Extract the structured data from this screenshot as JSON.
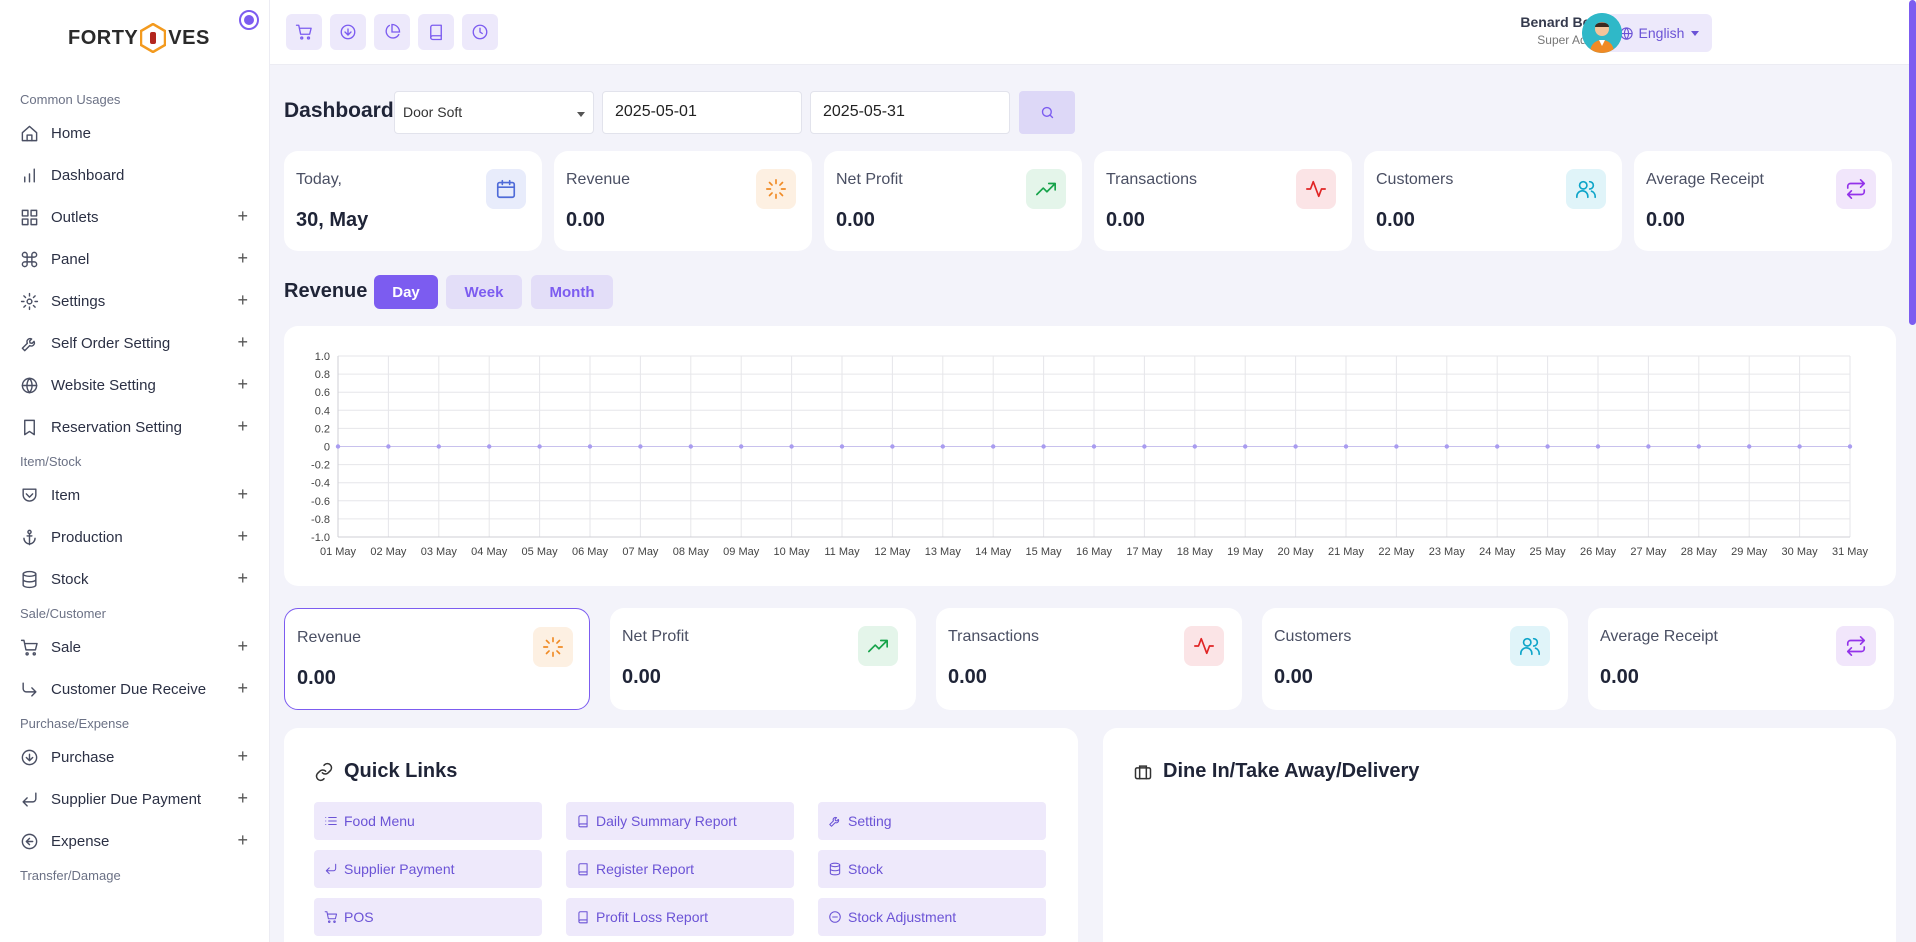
{
  "logo": {
    "left": "FORTY",
    "right": "VES"
  },
  "sidebar": {
    "sections": [
      {
        "title": "Common Usages",
        "items": [
          {
            "label": "Home",
            "icon": "home-icon",
            "plus": ""
          },
          {
            "label": "Dashboard",
            "icon": "bar-chart-icon",
            "plus": ""
          },
          {
            "label": "Outlets",
            "icon": "grid-icon",
            "plus": "+"
          },
          {
            "label": "Panel",
            "icon": "command-icon",
            "plus": "+"
          },
          {
            "label": "Settings",
            "icon": "gear-icon",
            "plus": "+"
          },
          {
            "label": "Self Order Setting",
            "icon": "wrench-icon",
            "plus": "+"
          },
          {
            "label": "Website Setting",
            "icon": "globe-icon",
            "plus": "+"
          },
          {
            "label": "Reservation Setting",
            "icon": "bookmark-icon",
            "plus": "+"
          }
        ]
      },
      {
        "title": "Item/Stock",
        "items": [
          {
            "label": "Item",
            "icon": "pocket-icon",
            "plus": "+"
          },
          {
            "label": "Production",
            "icon": "anchor-icon",
            "plus": "+"
          },
          {
            "label": "Stock",
            "icon": "database-icon",
            "plus": "+"
          }
        ]
      },
      {
        "title": "Sale/Customer",
        "items": [
          {
            "label": "Sale",
            "icon": "cart-icon",
            "plus": "+"
          },
          {
            "label": "Customer Due Receive",
            "icon": "corner-down-right-icon",
            "plus": "+"
          }
        ]
      },
      {
        "title": "Purchase/Expense",
        "items": [
          {
            "label": "Purchase",
            "icon": "arrow-down-circle-icon",
            "plus": "+"
          },
          {
            "label": "Supplier Due Payment",
            "icon": "corner-down-left-icon",
            "plus": "+"
          },
          {
            "label": "Expense",
            "icon": "arrow-left-circle-icon",
            "plus": "+"
          }
        ]
      },
      {
        "title": "Transfer/Damage",
        "items": []
      }
    ]
  },
  "topbar": {
    "language": "English",
    "user_name": "Benard Bees",
    "user_role": "Super Admin"
  },
  "filters": {
    "title": "Dashboard",
    "outlet": "Door Soft",
    "start_date": "2025-05-01",
    "end_date": "2025-05-31"
  },
  "top_cards": [
    {
      "label": "Today,",
      "value": "30, May",
      "icon": "calendar-icon",
      "color": "#4f6bd8",
      "bg": "#e8ecfb"
    },
    {
      "label": "Revenue",
      "value": "0.00",
      "icon": "loader-icon",
      "color": "#f08a24",
      "bg": "#fdf0e2"
    },
    {
      "label": "Net Profit",
      "value": "0.00",
      "icon": "trending-up-icon",
      "color": "#16a34a",
      "bg": "#e4f5ea"
    },
    {
      "label": "Transactions",
      "value": "0.00",
      "icon": "activity-icon",
      "color": "#e02424",
      "bg": "#fbe4e6"
    },
    {
      "label": "Customers",
      "value": "0.00",
      "icon": "users-icon",
      "color": "#0ea5c9",
      "bg": "#e0f4f9"
    },
    {
      "label": "Average Receipt",
      "value": "0.00",
      "icon": "repeat-icon",
      "color": "#9333ea",
      "bg": "#f1e6fb"
    }
  ],
  "revenue": {
    "title": "Revenue",
    "tabs": [
      "Day",
      "Week",
      "Month"
    ],
    "active_tab": "Day"
  },
  "chart_data": {
    "type": "line",
    "x": [
      "01 May",
      "02 May",
      "03 May",
      "04 May",
      "05 May",
      "06 May",
      "07 May",
      "08 May",
      "09 May",
      "10 May",
      "11 May",
      "12 May",
      "13 May",
      "14 May",
      "15 May",
      "16 May",
      "17 May",
      "18 May",
      "19 May",
      "20 May",
      "21 May",
      "22 May",
      "23 May",
      "24 May",
      "25 May",
      "26 May",
      "27 May",
      "28 May",
      "29 May",
      "30 May",
      "31 May"
    ],
    "series": [
      {
        "values": [
          0,
          0,
          0,
          0,
          0,
          0,
          0,
          0,
          0,
          0,
          0,
          0,
          0,
          0,
          0,
          0,
          0,
          0,
          0,
          0,
          0,
          0,
          0,
          0,
          0,
          0,
          0,
          0,
          0,
          0,
          0
        ]
      }
    ],
    "ylim": [
      -1.0,
      1.0
    ],
    "yticks": [
      "1.0",
      "0.8",
      "0.6",
      "0.4",
      "0.2",
      "0",
      "-0.2",
      "-0.4",
      "-0.6",
      "-0.8",
      "-1.0"
    ],
    "grid": true,
    "title": "",
    "xlabel": "",
    "ylabel": "",
    "color": "#a99cf0"
  },
  "bottom_cards": [
    {
      "label": "Revenue",
      "value": "0.00",
      "icon": "loader-icon",
      "color": "#f08a24",
      "bg": "#fdf0e2"
    },
    {
      "label": "Net Profit",
      "value": "0.00",
      "icon": "trending-up-icon",
      "color": "#16a34a",
      "bg": "#e4f5ea"
    },
    {
      "label": "Transactions",
      "value": "0.00",
      "icon": "activity-icon",
      "color": "#e02424",
      "bg": "#fbe4e6"
    },
    {
      "label": "Customers",
      "value": "0.00",
      "icon": "users-icon",
      "color": "#0ea5c9",
      "bg": "#e0f4f9"
    },
    {
      "label": "Average Receipt",
      "value": "0.00",
      "icon": "repeat-icon",
      "color": "#9333ea",
      "bg": "#f1e6fb"
    }
  ],
  "quick_links": {
    "title": "Quick Links",
    "items": [
      {
        "label": "Food Menu",
        "icon": "list-icon"
      },
      {
        "label": "Daily Summary Report",
        "icon": "book-icon"
      },
      {
        "label": "Setting",
        "icon": "wrench-icon"
      },
      {
        "label": "Supplier Payment",
        "icon": "corner-down-left-icon"
      },
      {
        "label": "Register Report",
        "icon": "book-icon"
      },
      {
        "label": "Stock",
        "icon": "database-icon"
      },
      {
        "label": "POS",
        "icon": "cart-icon"
      },
      {
        "label": "Profit Loss Report",
        "icon": "book-icon"
      },
      {
        "label": "Stock Adjustment",
        "icon": "minus-circle-icon"
      }
    ]
  },
  "dine_panel": {
    "title": "Dine In/Take Away/Delivery"
  }
}
